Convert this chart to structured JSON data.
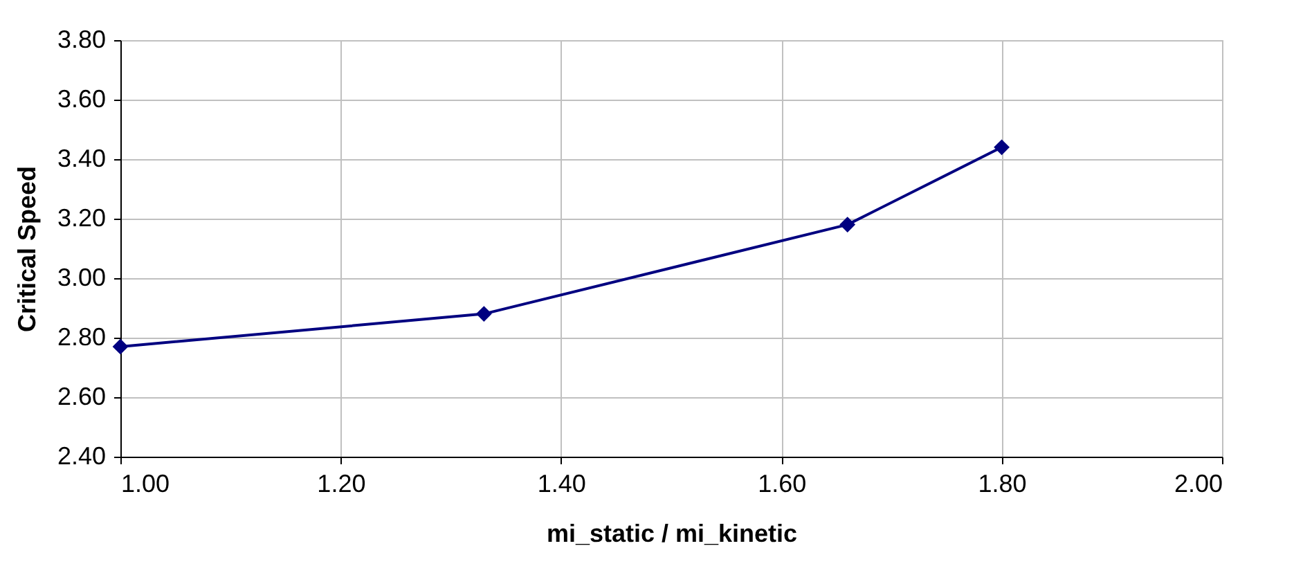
{
  "chart_data": {
    "type": "line",
    "xlabel": "mi_static / mi_kinetic",
    "ylabel": "Critical Speed",
    "x": [
      1.0,
      1.33,
      1.66,
      1.8
    ],
    "series": [
      {
        "color": "#000080",
        "values": [
          2.77,
          2.88,
          3.18,
          3.44
        ]
      }
    ],
    "xlim": [
      1.0,
      2.0
    ],
    "xticks": [
      {
        "value": 1,
        "label": "1.00"
      },
      {
        "value": 1.2,
        "label": "1.20"
      },
      {
        "value": 1.4,
        "label": "1.40"
      },
      {
        "value": 1.6,
        "label": "1.60"
      },
      {
        "value": 1.8,
        "label": "1.80"
      },
      {
        "value": 2,
        "label": "2.00"
      }
    ],
    "ylim": [
      2.4,
      3.8
    ],
    "yticks": [
      {
        "value": 2.4,
        "label": "2.40"
      },
      {
        "value": 2.6,
        "label": "2.60"
      },
      {
        "value": 2.8,
        "label": "2.80"
      },
      {
        "value": 3,
        "label": "3.00"
      },
      {
        "value": 3.2,
        "label": "3.20"
      },
      {
        "value": 3.4,
        "label": "3.40"
      },
      {
        "value": 3.6,
        "label": "3.60"
      },
      {
        "value": 3.8,
        "label": "3.80"
      }
    ],
    "grid": true,
    "marker": "diamond",
    "line_style": "solid"
  }
}
